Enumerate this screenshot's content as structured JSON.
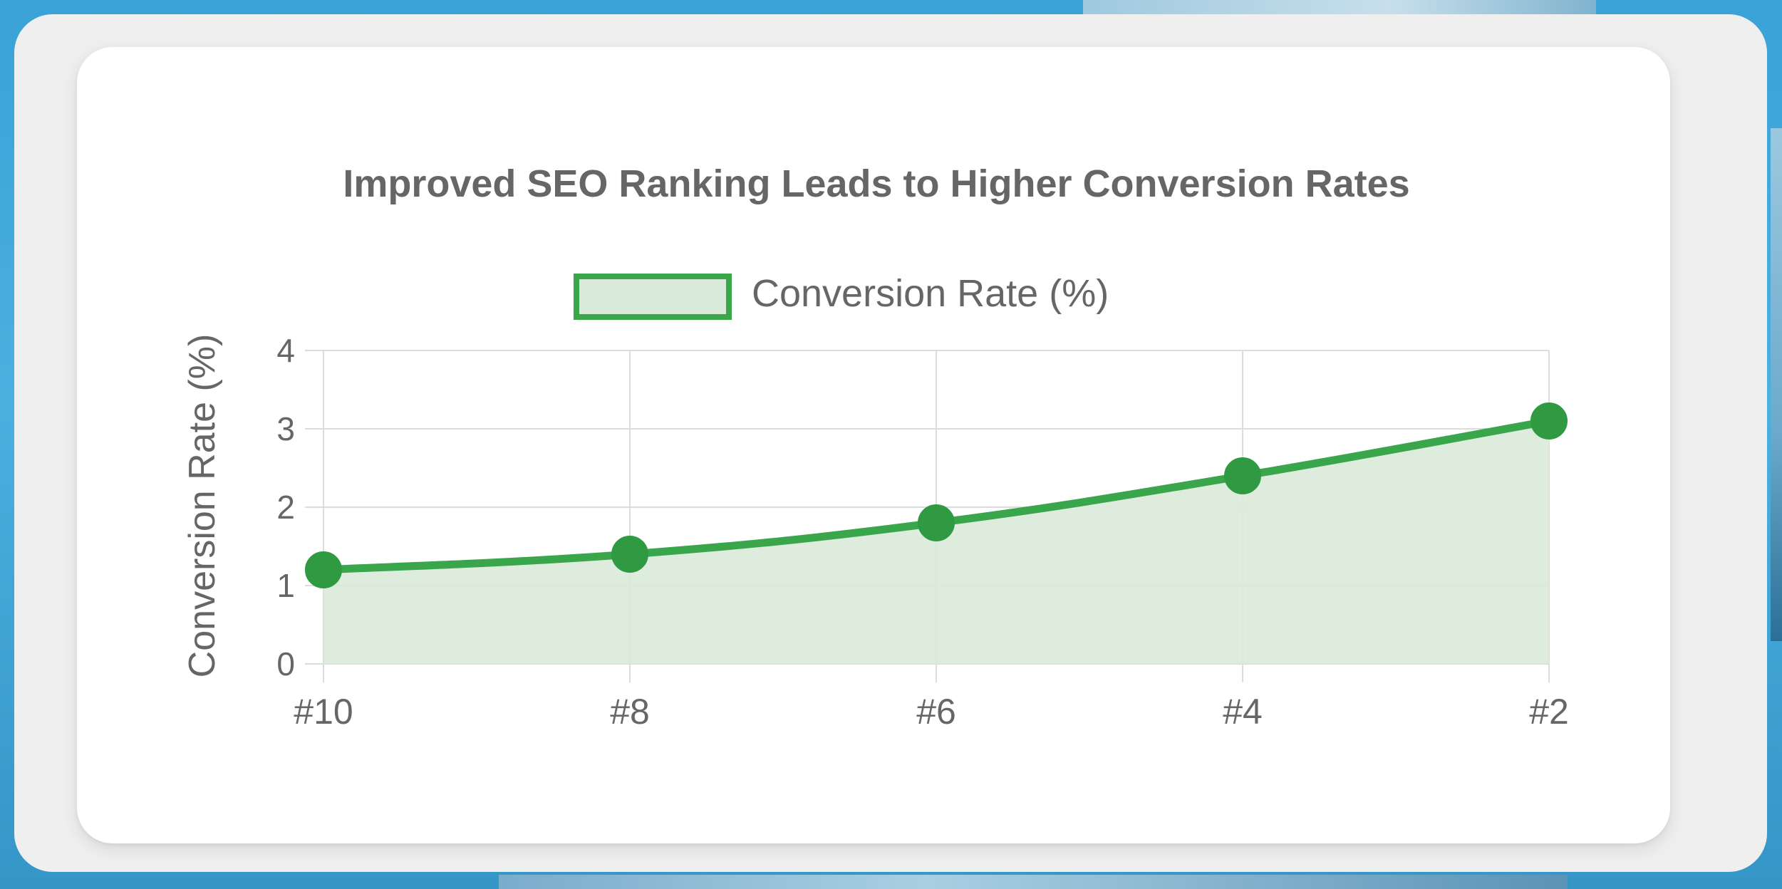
{
  "chart_data": {
    "type": "line",
    "title": "Improved SEO Ranking Leads to Higher Conversion Rates",
    "categories": [
      "#10",
      "#8",
      "#6",
      "#4",
      "#2"
    ],
    "series": [
      {
        "name": "Conversion Rate (%)",
        "values": [
          1.2,
          1.4,
          1.8,
          2.4,
          3.1
        ]
      }
    ],
    "xlabel": "",
    "ylabel": "Conversion Rate (%)",
    "ylim": [
      0,
      4
    ],
    "yticks": [
      "0",
      "1",
      "2",
      "3",
      "4"
    ],
    "grid": true,
    "legend": "top",
    "fill": true,
    "colors": {
      "line": "#3aa64c",
      "fill": "#d9ead9",
      "point": "#2f9a42",
      "grid": "#dcdcdc",
      "text": "#666666"
    }
  }
}
